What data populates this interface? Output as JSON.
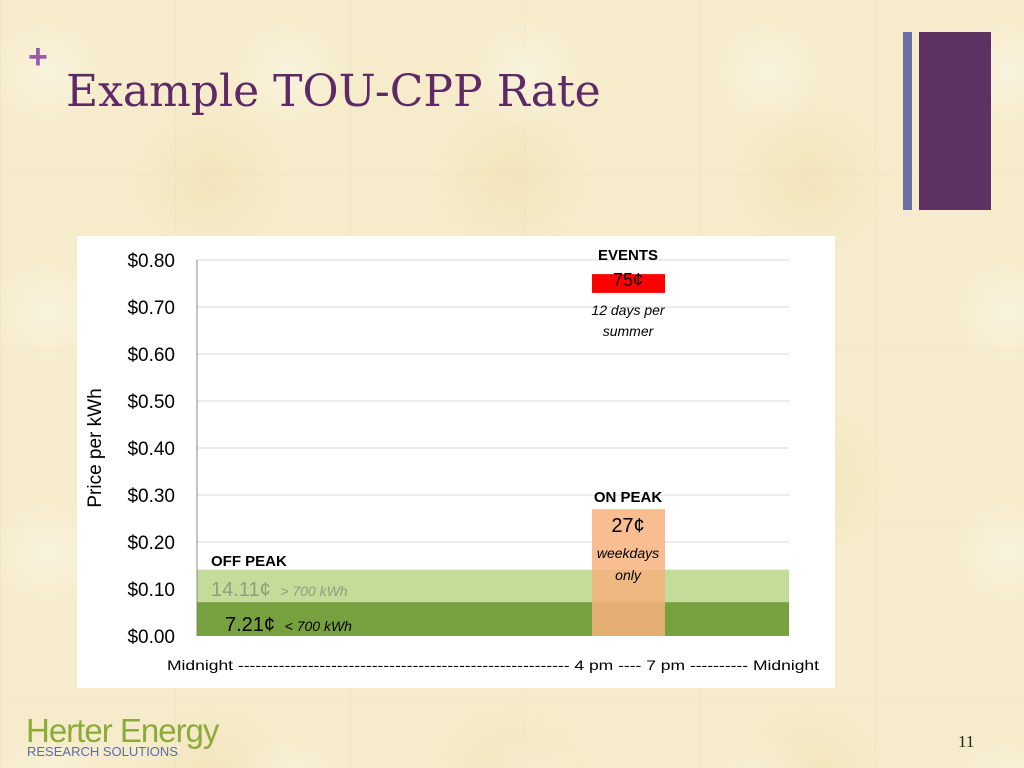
{
  "slide": {
    "plus": "+",
    "title": "Example TOU-CPP Rate",
    "page_number": "11",
    "logo_main": "Herter Energy",
    "logo_sub": "RESEARCH SOLUTIONS",
    "colors": {
      "title": "#5e2a66",
      "accent_purple": "#5e3163",
      "accent_blue": "#6c6fa6",
      "logo_green": "#8cab3a"
    }
  },
  "chart_data": {
    "type": "bar",
    "ylabel": "Price per kWh",
    "ylim": [
      0,
      0.8
    ],
    "yticks": [
      "$0.00",
      "$0.10",
      "$0.20",
      "$0.30",
      "$0.40",
      "$0.50",
      "$0.60",
      "$0.70",
      "$0.80"
    ],
    "grid": true,
    "x_axis_label": "Midnight --------------------------------------------------------- 4 pm ---- 7 pm ---------- Midnight",
    "bands": [
      {
        "name": "off-peak-upper",
        "y0": 0.0721,
        "y1": 0.1411,
        "x0_hour": 0,
        "x1_hour": 24,
        "color": "#c3dc9a"
      },
      {
        "name": "off-peak-lower",
        "y0": 0,
        "y1": 0.0721,
        "x0_hour": 0,
        "x1_hour": 24,
        "color": "#77a03e"
      },
      {
        "name": "on-peak",
        "y0": 0,
        "y1": 0.27,
        "x0_hour": 16,
        "x1_hour": 19,
        "color": "#f7b27c",
        "opacity": 0.85
      },
      {
        "name": "events",
        "y0": 0.73,
        "y1": 0.77,
        "x0_hour": 16,
        "x1_hour": 19,
        "color": "#ff0000"
      }
    ],
    "annotations": {
      "off_peak_header": "OFF PEAK",
      "off_peak_high_price": "14.11¢",
      "off_peak_high_note": "> 700 kWh",
      "off_peak_low_price": "7.21¢",
      "off_peak_low_note": "< 700 kWh",
      "on_peak_header": "ON PEAK",
      "on_peak_price": "27¢",
      "on_peak_note_1": "weekdays",
      "on_peak_note_2": "only",
      "events_header": "EVENTS",
      "events_price": "75¢",
      "events_note_1": "12 days per",
      "events_note_2": "summer"
    }
  }
}
